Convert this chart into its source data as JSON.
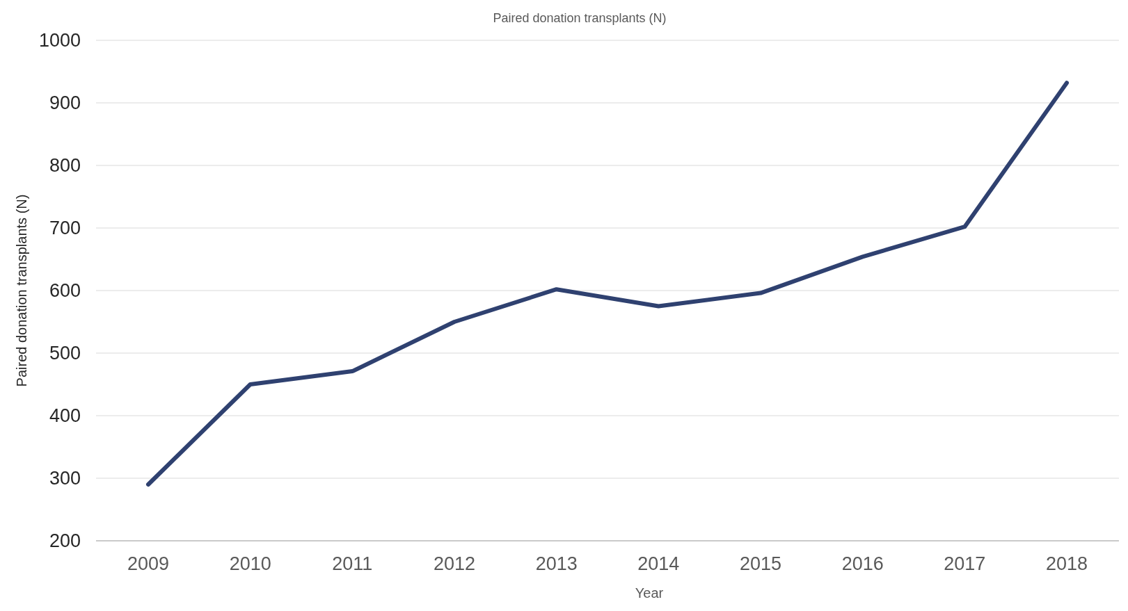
{
  "chart_data": {
    "type": "line",
    "title": "Paired donation transplants (N)",
    "xlabel": "Year",
    "ylabel": "Paired donation transplants (N)",
    "categories": [
      "2009",
      "2010",
      "2011",
      "2012",
      "2013",
      "2014",
      "2015",
      "2016",
      "2017",
      "2018"
    ],
    "series": [
      {
        "color": "#2f4170",
        "values": [
          290,
          450,
          471,
          550,
          602,
          575,
          596,
          654,
          702,
          932
        ]
      }
    ],
    "ylim": [
      200,
      1000
    ],
    "yticks": [
      200,
      300,
      400,
      500,
      600,
      700,
      800,
      900,
      1000
    ],
    "grid": "y",
    "marker": "none",
    "line_style": "solid"
  }
}
